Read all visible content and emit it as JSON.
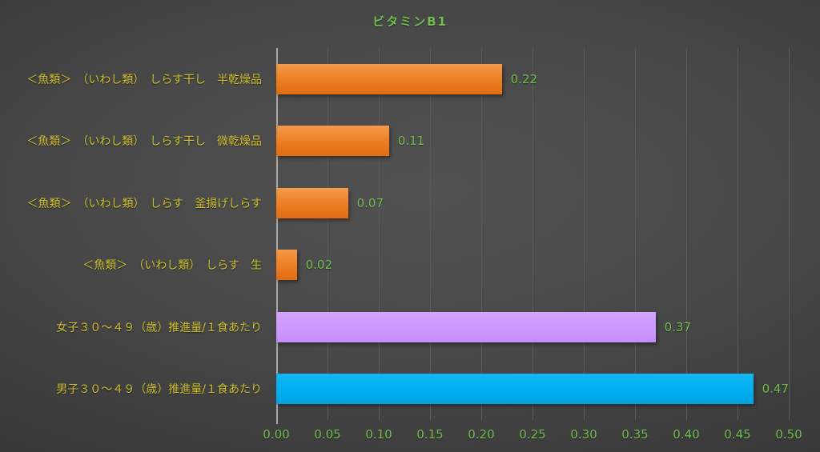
{
  "chart_data": {
    "type": "bar",
    "orientation": "horizontal",
    "title": "ビタミンB1",
    "categories": [
      "＜魚類＞　（いわし類）　しらす干し　半乾燥品",
      "＜魚類＞　（いわし類）　しらす干し　微乾燥品",
      "＜魚類＞　（いわし類）　しらす　釜揚げしらす",
      "＜魚類＞　（いわし類）　しらす　生",
      "女子３０～４９（歳）推進量/１食あたり",
      "男子３０～４９（歳）推進量/１食あたり"
    ],
    "values": [
      0.22,
      0.11,
      0.07,
      0.02,
      0.37,
      0.47
    ],
    "value_labels": [
      "0.22",
      "0.11",
      "0.07",
      "0.02",
      "0.37",
      "0.47"
    ],
    "bar_color_keys": [
      "orange",
      "orange",
      "orange",
      "orange",
      "purple",
      "cyan"
    ],
    "xlabel": "",
    "ylabel": "",
    "xlim": [
      0.0,
      0.5
    ],
    "x_ticks": [
      "0.00",
      "0.05",
      "0.10",
      "0.15",
      "0.20",
      "0.25",
      "0.30",
      "0.35",
      "0.40",
      "0.45",
      "0.50"
    ],
    "grid": true,
    "legend": "none"
  },
  "colors": {
    "background_center": "#525252",
    "background_edge": "#222222",
    "title_text": "#72BE4F",
    "tick_text": "#72BE4F",
    "value_text": "#72BE4F",
    "category_text": "#D0C12E",
    "bar_orange": "#EA7A20",
    "bar_purple": "#CC99FF",
    "bar_cyan": "#00AEEF",
    "gridline": "#5A5A5A",
    "axis_line": "#A8A8A8"
  }
}
